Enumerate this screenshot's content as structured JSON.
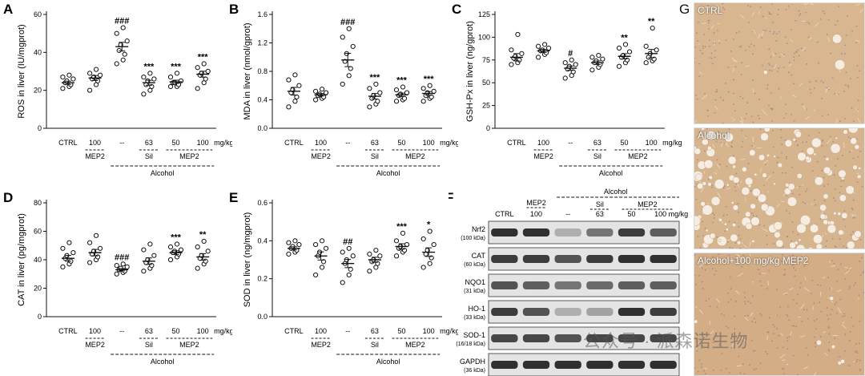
{
  "panels": [
    {
      "id": "A",
      "ylabel": "ROS in liver (IU/mgprot)",
      "yticks": [
        0,
        20,
        40,
        60
      ],
      "ylim": [
        0,
        60
      ],
      "sig": [
        "",
        "",
        "###",
        "***",
        "***",
        "***"
      ],
      "chart_data": {
        "type": "scatter",
        "categories": [
          "CTRL",
          "100",
          "--",
          "63",
          "50",
          "100"
        ],
        "means": [
          24,
          26.5,
          43,
          24,
          24.5,
          28.5
        ],
        "points": [
          [
            21,
            22,
            23,
            24,
            25,
            26,
            27,
            28
          ],
          [
            20,
            23,
            25,
            26,
            27,
            28,
            29,
            31
          ],
          [
            34,
            36,
            39,
            41,
            44,
            46,
            50,
            53
          ],
          [
            18,
            20,
            22,
            23,
            25,
            26,
            27,
            29
          ],
          [
            22,
            22,
            23,
            24,
            24,
            25,
            27,
            29
          ],
          [
            21,
            24,
            26,
            28,
            29,
            30,
            32,
            34
          ]
        ]
      }
    },
    {
      "id": "B",
      "ylabel": "MDA in liver (nmol/gprot)",
      "yticks": [
        0.0,
        0.4,
        0.8,
        1.2,
        1.6
      ],
      "ylim": [
        0,
        1.6
      ],
      "sig": [
        "",
        "",
        "###",
        "***",
        "***",
        "***"
      ],
      "chart_data": {
        "type": "scatter",
        "categories": [
          "CTRL",
          "100",
          "--",
          "63",
          "50",
          "100"
        ],
        "means": [
          0.52,
          0.47,
          0.96,
          0.45,
          0.47,
          0.49
        ],
        "points": [
          [
            0.3,
            0.38,
            0.44,
            0.5,
            0.54,
            0.6,
            0.68,
            0.75
          ],
          [
            0.4,
            0.42,
            0.44,
            0.46,
            0.48,
            0.5,
            0.52,
            0.55
          ],
          [
            0.62,
            0.74,
            0.84,
            0.94,
            1.05,
            1.15,
            1.28,
            1.4
          ],
          [
            0.3,
            0.34,
            0.38,
            0.42,
            0.46,
            0.5,
            0.56,
            0.62
          ],
          [
            0.38,
            0.4,
            0.42,
            0.46,
            0.48,
            0.5,
            0.54,
            0.58
          ],
          [
            0.38,
            0.42,
            0.44,
            0.46,
            0.5,
            0.52,
            0.56,
            0.6
          ]
        ]
      }
    },
    {
      "id": "C",
      "ylabel": "GSH-Px in liver (ng/gprot)",
      "yticks": [
        0,
        25,
        50,
        75,
        100,
        125
      ],
      "ylim": [
        0,
        125
      ],
      "sig": [
        "",
        "",
        "#",
        "",
        "**",
        "**"
      ],
      "chart_data": {
        "type": "scatter",
        "categories": [
          "CTRL",
          "100",
          "--",
          "63",
          "50",
          "100"
        ],
        "means": [
          78,
          85,
          66,
          72,
          79,
          82
        ],
        "points": [
          [
            70,
            72,
            75,
            77,
            79,
            82,
            86,
            103
          ],
          [
            78,
            81,
            83,
            85,
            86,
            88,
            90,
            92
          ],
          [
            55,
            58,
            62,
            65,
            68,
            70,
            72,
            75
          ],
          [
            64,
            67,
            70,
            72,
            74,
            76,
            78,
            80
          ],
          [
            68,
            72,
            75,
            78,
            80,
            84,
            88,
            92
          ],
          [
            72,
            74,
            76,
            78,
            82,
            86,
            90,
            110
          ]
        ]
      }
    },
    {
      "id": "D",
      "ylabel": "CAT in liver (pg/mgprot)",
      "yticks": [
        0,
        20,
        40,
        60,
        80
      ],
      "ylim": [
        0,
        80
      ],
      "sig": [
        "",
        "",
        "###",
        "",
        "***",
        "**"
      ],
      "chart_data": {
        "type": "scatter",
        "categories": [
          "CTRL",
          "100",
          "--",
          "63",
          "50",
          "100"
        ],
        "means": [
          41,
          45,
          33,
          39,
          45,
          42
        ],
        "points": [
          [
            35,
            37,
            39,
            41,
            43,
            45,
            48,
            52
          ],
          [
            38,
            40,
            42,
            44,
            46,
            48,
            52,
            57
          ],
          [
            30,
            31,
            32,
            33,
            34,
            35,
            36,
            37
          ],
          [
            32,
            34,
            36,
            38,
            40,
            43,
            47,
            51
          ],
          [
            40,
            42,
            44,
            45,
            46,
            47,
            49,
            51
          ],
          [
            34,
            37,
            39,
            41,
            43,
            46,
            49,
            53
          ]
        ]
      }
    },
    {
      "id": "E",
      "ylabel": "SOD in liver (ng/mgprot)",
      "yticks": [
        0.0,
        0.2,
        0.4,
        0.6
      ],
      "ylim": [
        0,
        0.6
      ],
      "sig": [
        "",
        "",
        "##",
        "",
        "***",
        "*"
      ],
      "chart_data": {
        "type": "scatter",
        "categories": [
          "CTRL",
          "100",
          "--",
          "63",
          "50",
          "100"
        ],
        "means": [
          0.36,
          0.32,
          0.28,
          0.3,
          0.37,
          0.34
        ],
        "points": [
          [
            0.33,
            0.34,
            0.35,
            0.36,
            0.37,
            0.38,
            0.39,
            0.4
          ],
          [
            0.22,
            0.26,
            0.29,
            0.32,
            0.34,
            0.36,
            0.38,
            0.4
          ],
          [
            0.18,
            0.22,
            0.25,
            0.28,
            0.3,
            0.32,
            0.34,
            0.36
          ],
          [
            0.24,
            0.26,
            0.28,
            0.29,
            0.3,
            0.32,
            0.33,
            0.35
          ],
          [
            0.32,
            0.34,
            0.35,
            0.36,
            0.37,
            0.38,
            0.4,
            0.44
          ],
          [
            0.26,
            0.28,
            0.31,
            0.33,
            0.35,
            0.38,
            0.41,
            0.45
          ]
        ]
      }
    }
  ],
  "axis": {
    "unit": "mg/kg",
    "group_mep2": "MEP2",
    "group_sil": "Sil",
    "group_alcohol": "Alcohol"
  },
  "western": {
    "id": "F",
    "header_alcohol": "Alcohol",
    "header_mep2_top": "MEP2",
    "header_mep2_dose": "100",
    "header_sil": "Sil",
    "header_mep2_right": "MEP2",
    "lanes": [
      "CTRL",
      "100",
      "--",
      "63",
      "50",
      "100 mg/kg"
    ],
    "bands": [
      {
        "name": "Nrf2",
        "kda": "(100 kDa)",
        "intensity": [
          0.9,
          0.9,
          0.35,
          0.6,
          0.85,
          0.7
        ]
      },
      {
        "name": "CAT",
        "kda": "(60 kDa)",
        "intensity": [
          0.85,
          0.85,
          0.75,
          0.85,
          0.9,
          0.9
        ]
      },
      {
        "name": "NQO1",
        "kda": "(31 kDa)",
        "intensity": [
          0.75,
          0.7,
          0.6,
          0.65,
          0.7,
          0.7
        ]
      },
      {
        "name": "HO-1",
        "kda": "(33 kDa)",
        "intensity": [
          0.85,
          0.75,
          0.35,
          0.4,
          0.9,
          0.85
        ]
      },
      {
        "name": "SOD-1",
        "kda": "(16/18 kDa)",
        "intensity": [
          0.8,
          0.8,
          0.75,
          0.8,
          0.8,
          0.8
        ]
      },
      {
        "name": "GAPDH",
        "kda": "(36 kDa)",
        "intensity": [
          0.9,
          0.9,
          0.9,
          0.9,
          0.9,
          0.9
        ]
      }
    ]
  },
  "histology": {
    "id": "G",
    "images": [
      {
        "title": "CTRL"
      },
      {
        "title": "Alcohol"
      },
      {
        "title": "Alcohol+100 mg/kg MEP2"
      }
    ]
  },
  "watermark": "公众号 · 派森诺生物"
}
